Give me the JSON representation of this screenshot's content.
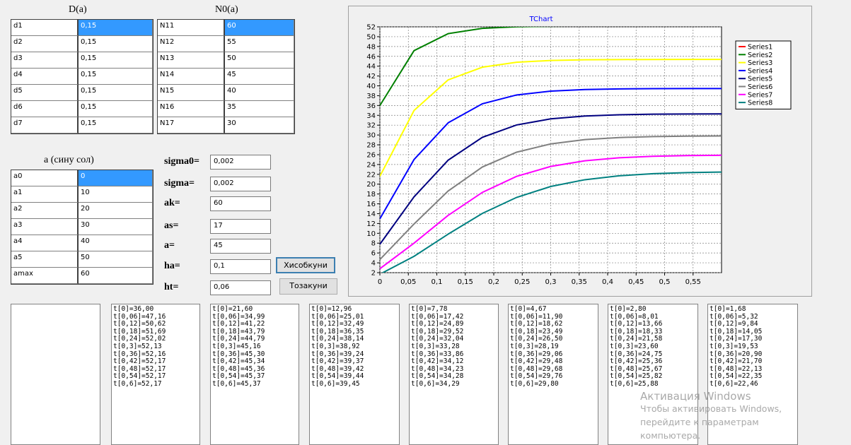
{
  "grids": [
    {
      "title": "D(a)",
      "rows": [
        [
          "d1",
          "0,15"
        ],
        [
          "d2",
          "0,15"
        ],
        [
          "d3",
          "0,15"
        ],
        [
          "d4",
          "0,15"
        ],
        [
          "d5",
          "0,15"
        ],
        [
          "d6",
          "0,15"
        ],
        [
          "d7",
          "0,15"
        ]
      ]
    },
    {
      "title": "N0(a)",
      "rows": [
        [
          "N11",
          "60"
        ],
        [
          "N12",
          "55"
        ],
        [
          "N13",
          "50"
        ],
        [
          "N14",
          "45"
        ],
        [
          "N15",
          "40"
        ],
        [
          "N16",
          "35"
        ],
        [
          "N17",
          "30"
        ]
      ]
    },
    {
      "title": "a (сину сол)",
      "rows": [
        [
          "a0",
          "0"
        ],
        [
          "a1",
          "10"
        ],
        [
          "a2",
          "20"
        ],
        [
          "a3",
          "30"
        ],
        [
          "a4",
          "40"
        ],
        [
          "a5",
          "50"
        ],
        [
          "amax",
          "60"
        ]
      ]
    }
  ],
  "params": [
    {
      "label": "sigma0=",
      "value": "0,002"
    },
    {
      "label": "sigma=",
      "value": "0,002"
    },
    {
      "label": "ak=",
      "value": "60"
    },
    {
      "label": "as=",
      "value": "17"
    },
    {
      "label": "a=",
      "value": "45"
    },
    {
      "label": "ha=",
      "value": "0,1"
    },
    {
      "label": "ht=",
      "value": "0,06"
    }
  ],
  "buttons": [
    "Хисобкуни",
    "Тозакуни"
  ],
  "chart_data": {
    "type": "line",
    "title": "TChart",
    "x": [
      0,
      0.06,
      0.12,
      0.18,
      0.24,
      0.3,
      0.36,
      0.42,
      0.48,
      0.54,
      0.6
    ],
    "xlim": [
      0,
      0.6
    ],
    "xticks": [
      0,
      {
        "value": 0.05,
        "label": "0,05"
      },
      {
        "value": 0.1,
        "label": "0,1"
      },
      {
        "value": 0.15,
        "label": "0,15"
      },
      {
        "value": 0.2,
        "label": "0,2"
      },
      {
        "value": 0.25,
        "label": "0,25"
      },
      {
        "value": 0.3,
        "label": "0,3"
      },
      {
        "value": 0.35,
        "label": "0,35"
      },
      {
        "value": 0.4,
        "label": "0,4"
      },
      {
        "value": 0.45,
        "label": "0,45"
      },
      {
        "value": 0.5,
        "label": "0,5"
      },
      {
        "value": 0.55,
        "label": "0,55"
      }
    ],
    "ylim": [
      2,
      52
    ],
    "yticks": [
      2,
      4,
      6,
      8,
      10,
      12,
      14,
      16,
      18,
      20,
      22,
      24,
      26,
      28,
      30,
      32,
      34,
      36,
      38,
      40,
      42,
      44,
      46,
      48,
      50,
      52
    ],
    "grid": true,
    "legend": "right",
    "series": [
      {
        "name": "Series1",
        "color": "#ff0000",
        "values": [
          null,
          null,
          null,
          null,
          null,
          null,
          null,
          null,
          null,
          null,
          null
        ]
      },
      {
        "name": "Series2",
        "color": "#008000",
        "values": [
          36.0,
          47.16,
          50.62,
          51.69,
          52.02,
          52.13,
          52.16,
          52.17,
          52.17,
          52.17,
          52.17
        ]
      },
      {
        "name": "Series3",
        "color": "#ffff00",
        "values": [
          21.6,
          34.99,
          41.22,
          43.79,
          44.79,
          45.16,
          45.3,
          45.34,
          45.36,
          45.37,
          45.37
        ]
      },
      {
        "name": "Series4",
        "color": "#0000ff",
        "values": [
          12.96,
          25.01,
          32.49,
          36.35,
          38.14,
          38.92,
          39.24,
          39.37,
          39.42,
          39.44,
          39.45
        ]
      },
      {
        "name": "Series5",
        "color": "#000080",
        "values": [
          7.78,
          17.42,
          24.89,
          29.52,
          32.04,
          33.28,
          33.86,
          34.12,
          34.23,
          34.28,
          34.29
        ]
      },
      {
        "name": "Series6",
        "color": "#808080",
        "values": [
          4.67,
          11.9,
          18.62,
          23.49,
          26.5,
          28.19,
          29.06,
          29.48,
          29.68,
          29.76,
          29.8
        ]
      },
      {
        "name": "Series7",
        "color": "#ff00ff",
        "values": [
          2.8,
          8.01,
          13.66,
          18.33,
          21.58,
          23.6,
          24.75,
          25.36,
          25.67,
          25.82,
          25.88
        ]
      },
      {
        "name": "Series8",
        "color": "#008080",
        "values": [
          1.68,
          5.32,
          9.84,
          14.05,
          17.3,
          19.53,
          20.9,
          21.7,
          22.13,
          22.35,
          22.46
        ]
      }
    ]
  },
  "memos": [
    [],
    [
      "t[0]=36,00",
      "t[0,06]=47,16",
      "t[0,12]=50,62",
      "t[0,18]=51,69",
      "t[0,24]=52,02",
      "t[0,3]=52,13",
      "t[0,36]=52,16",
      "t[0,42]=52,17",
      "t[0,48]=52,17",
      "t[0,54]=52,17",
      "t[0,6]=52,17"
    ],
    [
      "t[0]=21,60",
      "t[0,06]=34,99",
      "t[0,12]=41,22",
      "t[0,18]=43,79",
      "t[0,24]=44,79",
      "t[0,3]=45,16",
      "t[0,36]=45,30",
      "t[0,42]=45,34",
      "t[0,48]=45,36",
      "t[0,54]=45,37",
      "t[0,6]=45,37"
    ],
    [
      "t[0]=12,96",
      "t[0,06]=25,01",
      "t[0,12]=32,49",
      "t[0,18]=36,35",
      "t[0,24]=38,14",
      "t[0,3]=38,92",
      "t[0,36]=39,24",
      "t[0,42]=39,37",
      "t[0,48]=39,42",
      "t[0,54]=39,44",
      "t[0,6]=39,45"
    ],
    [
      "t[0]=7,78",
      "t[0,06]=17,42",
      "t[0,12]=24,89",
      "t[0,18]=29,52",
      "t[0,24]=32,04",
      "t[0,3]=33,28",
      "t[0,36]=33,86",
      "t[0,42]=34,12",
      "t[0,48]=34,23",
      "t[0,54]=34,28",
      "t[0,6]=34,29"
    ],
    [
      "t[0]=4,67",
      "t[0,06]=11,90",
      "t[0,12]=18,62",
      "t[0,18]=23,49",
      "t[0,24]=26,50",
      "t[0,3]=28,19",
      "t[0,36]=29,06",
      "t[0,42]=29,48",
      "t[0,48]=29,68",
      "t[0,54]=29,76",
      "t[0,6]=29,80"
    ],
    [
      "t[0]=2,80",
      "t[0,06]=8,01",
      "t[0,12]=13,66",
      "t[0,18]=18,33",
      "t[0,24]=21,58",
      "t[0,3]=23,60",
      "t[0,36]=24,75",
      "t[0,42]=25,36",
      "t[0,48]=25,67",
      "t[0,54]=25,82",
      "t[0,6]=25,88"
    ],
    [
      "t[0]=1,68",
      "t[0,06]=5,32",
      "t[0,12]=9,84",
      "t[0,18]=14,05",
      "t[0,24]=17,30",
      "t[0,3]=19,53",
      "t[0,36]=20,90",
      "t[0,42]=21,70",
      "t[0,48]=22,13",
      "t[0,54]=22,35",
      "t[0,6]=22,46"
    ]
  ],
  "watermark": {
    "title": "Активация Windows",
    "lines": [
      "Чтобы активировать Windows,",
      "перейдите к параметрам",
      "компьютера."
    ]
  }
}
